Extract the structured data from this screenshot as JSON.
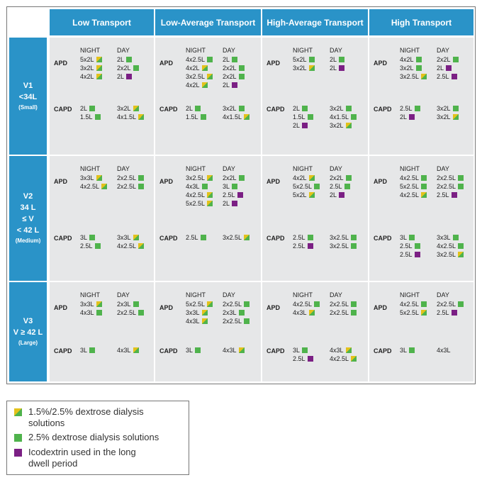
{
  "header": {
    "columns": [
      "Low Transport",
      "Low-Average Transport",
      "High-Average Transport",
      "High Transport"
    ]
  },
  "common": {
    "night_label": "NIGHT",
    "day_label": "DAY",
    "apd_label": "APD",
    "capd_label": "CAPD"
  },
  "rows": [
    {
      "header": [
        "V1",
        "<34L",
        "(Small)"
      ],
      "cells": [
        {
          "apd": {
            "night": [
              [
                "5x2L",
                "mix"
              ],
              [
                "3x2L",
                "mix"
              ],
              [
                "4x2L",
                "mix"
              ]
            ],
            "day": [
              [
                "2L",
                "green"
              ],
              [
                "2x2L",
                "green"
              ],
              [
                "2L",
                "purple"
              ]
            ]
          },
          "capd": {
            "night": [
              [
                "2L",
                "green"
              ],
              [
                "1.5L",
                "green"
              ]
            ],
            "day": [
              [
                "3x2L",
                "mix"
              ],
              [
                "4x1.5L",
                "mix"
              ]
            ]
          }
        },
        {
          "apd": {
            "night": [
              [
                "4x2.5L",
                "green"
              ],
              [
                "4x2L",
                "mix"
              ],
              [
                "3x2.5L",
                "mix"
              ],
              [
                "4x2L",
                "mix"
              ]
            ],
            "day": [
              [
                "2L",
                "green"
              ],
              [
                "2x2L",
                "green"
              ],
              [
                "2x2L",
                "green"
              ],
              [
                "2L",
                "purple"
              ]
            ]
          },
          "capd": {
            "night": [
              [
                "2L",
                "green"
              ],
              [
                "1.5L",
                "green"
              ]
            ],
            "day": [
              [
                "3x2L",
                "green"
              ],
              [
                "4x1.5L",
                "mix"
              ]
            ]
          }
        },
        {
          "apd": {
            "night": [
              [
                "5x2L",
                "green"
              ],
              [
                "3x2L",
                "mix"
              ]
            ],
            "day": [
              [
                "2L",
                "green"
              ],
              [
                "2L",
                "purple"
              ]
            ]
          },
          "capd": {
            "night": [
              [
                "2L",
                "green"
              ],
              [
                "1.5L",
                "green"
              ],
              [
                "2L",
                "purple"
              ]
            ],
            "day": [
              [
                "3x2L",
                "green"
              ],
              [
                "4x1.5L",
                "green"
              ],
              [
                "3x2L",
                "mix"
              ]
            ]
          }
        },
        {
          "apd": {
            "night": [
              [
                "4x2L",
                "green"
              ],
              [
                "3x2L",
                "green"
              ],
              [
                "3x2.5L",
                "mix"
              ]
            ],
            "day": [
              [
                "2x2L",
                "green"
              ],
              [
                "2L",
                "purple"
              ],
              [
                "2.5L",
                "purple"
              ]
            ]
          },
          "capd": {
            "night": [
              [
                "2.5L",
                "green"
              ],
              [
                "2L",
                "purple"
              ]
            ],
            "day": [
              [
                "3x2L",
                "green"
              ],
              [
                "3x2L",
                "mix"
              ]
            ]
          }
        }
      ]
    },
    {
      "header": [
        "V2",
        "34 L",
        "≤ V",
        "< 42 L",
        "(Medium)"
      ],
      "cells": [
        {
          "apd": {
            "night": [
              [
                "3x3L",
                "mix"
              ],
              [
                "4x2.5L",
                "mix"
              ]
            ],
            "day": [
              [
                "2x2.5L",
                "green"
              ],
              [
                "2x2.5L",
                "green"
              ]
            ]
          },
          "capd": {
            "night": [
              [
                "3L",
                "green"
              ],
              [
                "2.5L",
                "green"
              ]
            ],
            "day": [
              [
                "3x3L",
                "mix"
              ],
              [
                "4x2.5L",
                "mix"
              ]
            ]
          }
        },
        {
          "apd": {
            "night": [
              [
                "3x2.5L",
                "mix"
              ],
              [
                "4x3L",
                "green"
              ],
              [
                "4x2.5L",
                "mix"
              ],
              [
                "5x2.5L",
                "mix"
              ]
            ],
            "day": [
              [
                "2x2L",
                "green"
              ],
              [
                "3L",
                "green"
              ],
              [
                "2.5L",
                "purple"
              ],
              [
                "2L",
                "purple"
              ]
            ]
          },
          "capd": {
            "night": [
              [
                "2.5L",
                "green"
              ]
            ],
            "day": [
              [
                "3x2.5L",
                "mix"
              ]
            ]
          }
        },
        {
          "apd": {
            "night": [
              [
                "4x2L",
                "mix"
              ],
              [
                "5x2.5L",
                "green"
              ],
              [
                "5x2L",
                "mix"
              ]
            ],
            "day": [
              [
                "2x2L",
                "green"
              ],
              [
                "2.5L",
                "green"
              ],
              [
                "2L",
                "purple"
              ]
            ]
          },
          "capd": {
            "night": [
              [
                "2.5L",
                "green"
              ],
              [
                "2.5L",
                "purple"
              ]
            ],
            "day": [
              [
                "3x2.5L",
                "green"
              ],
              [
                "3x2.5L",
                "green"
              ]
            ]
          }
        },
        {
          "apd": {
            "night": [
              [
                "4x2.5L",
                "green"
              ],
              [
                "5x2.5L",
                "green"
              ],
              [
                "4x2.5L",
                "mix"
              ]
            ],
            "day": [
              [
                "2x2.5L",
                "green"
              ],
              [
                "2x2.5L",
                "green"
              ],
              [
                "2.5L",
                "purple"
              ]
            ]
          },
          "capd": {
            "night": [
              [
                "3L",
                "green"
              ],
              [
                "2.5L",
                "green"
              ],
              [
                "2.5L",
                "purple"
              ]
            ],
            "day": [
              [
                "3x3L",
                "green"
              ],
              [
                "4x2.5L",
                "green"
              ],
              [
                "3x2.5L",
                "mix"
              ]
            ]
          }
        }
      ]
    },
    {
      "header": [
        "V3",
        "V ≥ 42 L",
        "(Large)"
      ],
      "cells": [
        {
          "apd": {
            "night": [
              [
                "3x3L",
                "mix"
              ],
              [
                "4x3L",
                "green"
              ]
            ],
            "day": [
              [
                "2x3L",
                "green"
              ],
              [
                "2x2.5L",
                "green"
              ]
            ]
          },
          "capd": {
            "night": [
              [
                "3L",
                "green"
              ]
            ],
            "day": [
              [
                "4x3L",
                "mix"
              ]
            ]
          }
        },
        {
          "apd": {
            "night": [
              [
                "5x2.5L",
                "mix"
              ],
              [
                "3x3L",
                "mix"
              ],
              [
                "4x3L",
                "mix"
              ]
            ],
            "day": [
              [
                "2x2.5L",
                "green"
              ],
              [
                "2x3L",
                "green"
              ],
              [
                "2x2.5L",
                "green"
              ]
            ]
          },
          "capd": {
            "night": [
              [
                "3L",
                "green"
              ]
            ],
            "day": [
              [
                "4x3L",
                "mix"
              ]
            ]
          }
        },
        {
          "apd": {
            "night": [
              [
                "4x2.5L",
                "green"
              ],
              [
                "4x3L",
                "mix"
              ]
            ],
            "day": [
              [
                "2x2.5L",
                "green"
              ],
              [
                "2x2.5L",
                "green"
              ]
            ]
          },
          "capd": {
            "night": [
              [
                "3L",
                "green"
              ],
              [
                "2.5L",
                "purple"
              ]
            ],
            "day": [
              [
                "4x3L",
                "mix"
              ],
              [
                "4x2.5L",
                "mix"
              ]
            ]
          }
        },
        {
          "apd": {
            "night": [
              [
                "4x2.5L",
                "green"
              ],
              [
                "5x2.5L",
                "mix"
              ]
            ],
            "day": [
              [
                "2x2.5L",
                "green"
              ],
              [
                "2.5L",
                "purple"
              ]
            ]
          },
          "capd": {
            "night": [
              [
                "3L",
                "green"
              ]
            ],
            "day": [
              [
                "4x3L",
                "none"
              ]
            ]
          }
        }
      ]
    }
  ],
  "legend": [
    {
      "swatch": "mix",
      "text": "1.5%/2.5% dextrose dialysis solutions"
    },
    {
      "swatch": "green",
      "text": "2.5% dextrose dialysis solutions"
    },
    {
      "swatch": "purple",
      "text": "Icodextrin used in the long dwell period"
    }
  ],
  "colors": {
    "header_blue": "#2a93c8",
    "cell_gray": "#e6e7e8",
    "green": "#4fb34c",
    "yellow": "#e3c21b",
    "purple": "#7b1f84"
  }
}
